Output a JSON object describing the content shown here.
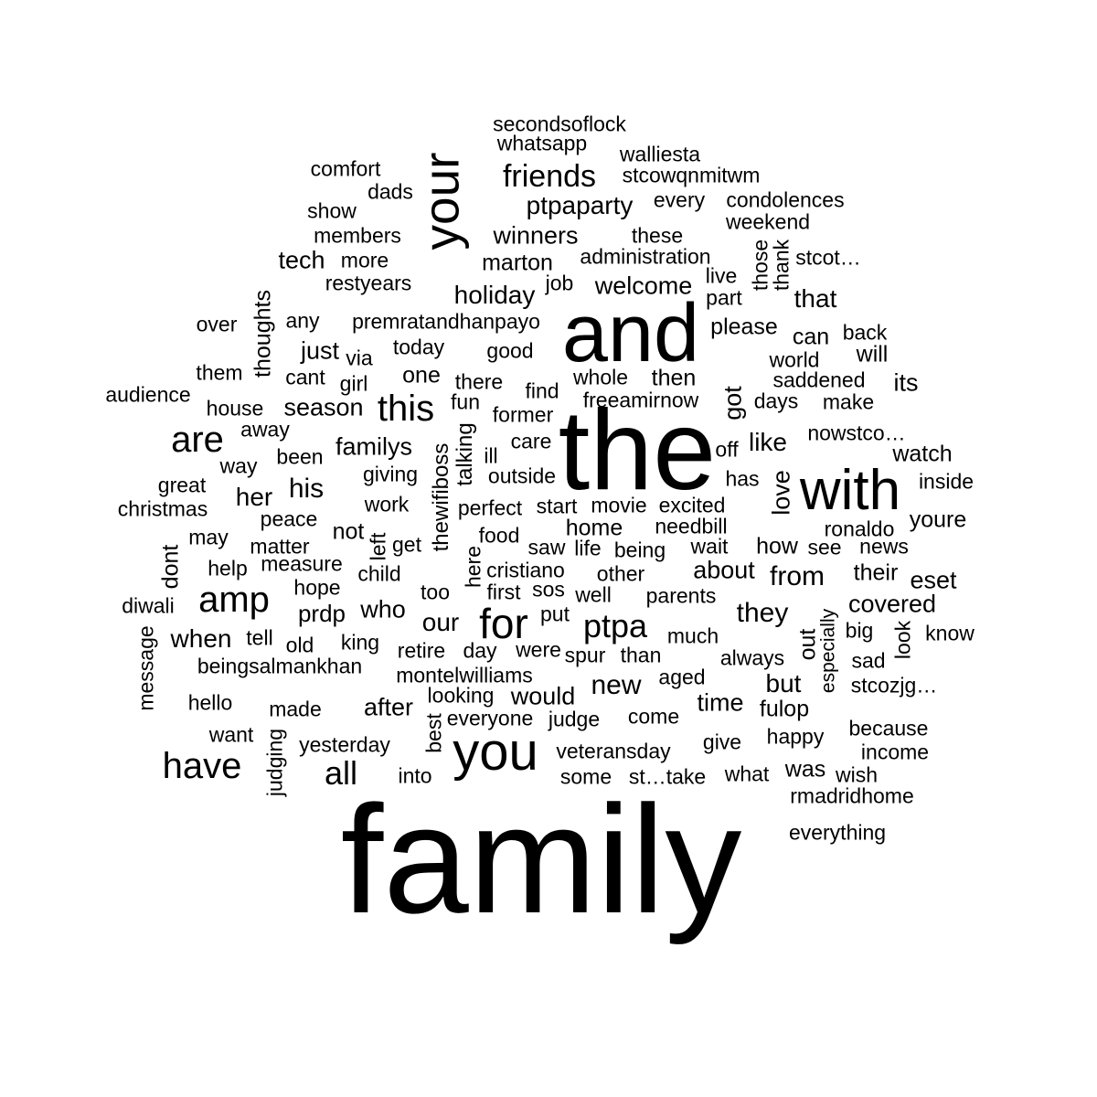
{
  "colors": {
    "background": "#ffffff",
    "text": "#000000"
  },
  "words": [
    "family",
    "the",
    "and",
    "with",
    "you",
    "your",
    "for",
    "amp",
    "have",
    "this",
    "are",
    "ptpa",
    "all",
    "friends",
    "our",
    "new",
    "they",
    "his",
    "her",
    "holiday",
    "ptpaparty",
    "winners",
    "welcome",
    "marton",
    "that",
    "tech",
    "just",
    "season",
    "familys",
    "would",
    "when",
    "who",
    "from",
    "about",
    "like",
    "love",
    "got",
    "its",
    "covered",
    "fulop",
    "but",
    "time",
    "was",
    "after",
    "thoughts",
    "eset",
    "prdp",
    "home",
    "how",
    "their",
    "youre",
    "out",
    "can",
    "will",
    "then",
    "one",
    "thewifiboss",
    "talking",
    "not",
    "dont",
    "secondsoflock",
    "whatsapp",
    "walliesta",
    "stcowqnmitwm",
    "comfort",
    "dads",
    "show",
    "members",
    "more",
    "restyears",
    "every",
    "condolences",
    "weekend",
    "these",
    "administration",
    "those",
    "thank",
    "stcot…",
    "live",
    "part",
    "job",
    "premratandhanpayo",
    "over",
    "any",
    "please",
    "back",
    "today",
    "via",
    "good",
    "them",
    "cant",
    "girl",
    "there",
    "whole",
    "world",
    "saddened",
    "audience",
    "house",
    "fun",
    "find",
    "freeamirnow",
    "days",
    "make",
    "former",
    "away",
    "nowstco…",
    "been",
    "ill",
    "care",
    "off",
    "watch",
    "way",
    "giving",
    "outside",
    "has",
    "inside",
    "great",
    "christmas",
    "work",
    "perfect",
    "start",
    "movie",
    "excited",
    "peace",
    "may",
    "food",
    "needbill",
    "ronaldo",
    "get",
    "matter",
    "saw",
    "life",
    "being",
    "wait",
    "see",
    "news",
    "help",
    "measure",
    "left",
    "child",
    "cristiano",
    "other",
    "here",
    "hope",
    "too",
    "first",
    "sos",
    "well",
    "parents",
    "diwali",
    "put",
    "especially",
    "tell",
    "old",
    "king",
    "big",
    "look",
    "know",
    "retire",
    "day",
    "were",
    "spur",
    "than",
    "much",
    "always",
    "sad",
    "message",
    "beingsalmankhan",
    "montelwilliams",
    "aged",
    "stcozjg…",
    "hello",
    "made",
    "looking",
    "everyone",
    "judge",
    "come",
    "want",
    "judging",
    "best",
    "happy",
    "because",
    "yesterday",
    "give",
    "veteransday",
    "income",
    "into",
    "some",
    "st…take",
    "what",
    "wish",
    "rmadridhome",
    "everything"
  ]
}
